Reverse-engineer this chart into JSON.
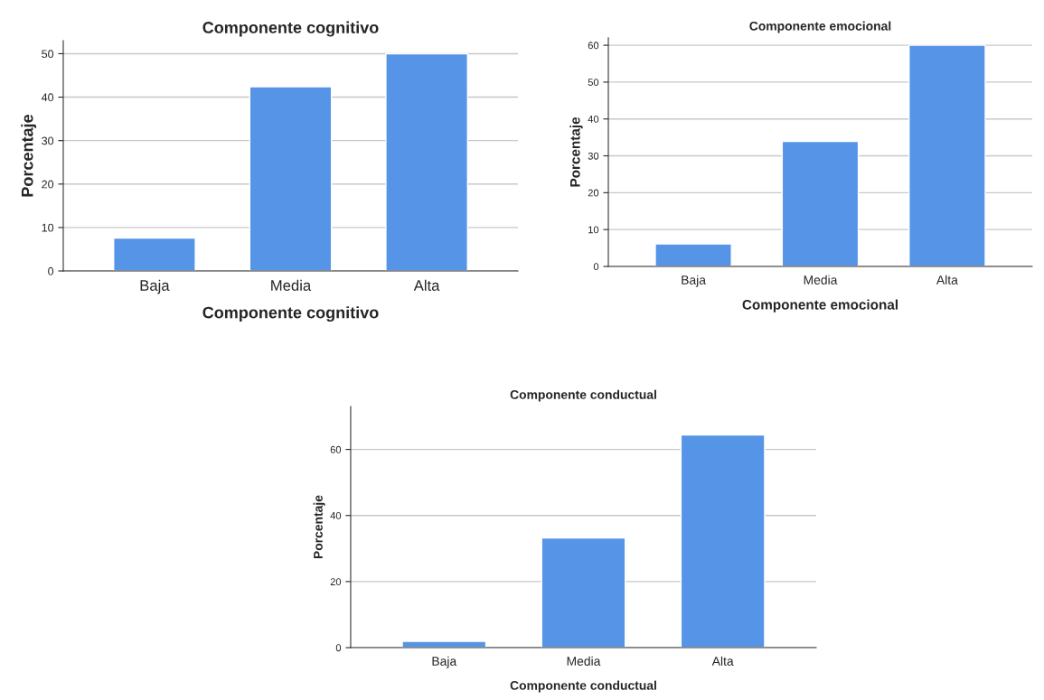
{
  "chart_data": [
    {
      "type": "bar",
      "title": "Componente cognitivo",
      "xlabel": "Componente cognitivo",
      "ylabel": "Porcentaje",
      "categories": [
        "Baja",
        "Media",
        "Alta"
      ],
      "values": [
        7.6,
        42.4,
        50.0
      ],
      "color": "#5594e6",
      "ylim": [
        0,
        53
      ],
      "yticks": [
        0,
        10,
        20,
        30,
        40,
        50
      ],
      "grid": "y",
      "legend": false
    },
    {
      "type": "bar",
      "title": "Componente emocional",
      "xlabel": "Componente emocional",
      "ylabel": "Porcentaje",
      "categories": [
        "Baja",
        "Media",
        "Alta"
      ],
      "values": [
        6.1,
        33.9,
        60.0
      ],
      "color": "#5594e6",
      "ylim": [
        0,
        62
      ],
      "yticks": [
        0,
        10,
        20,
        30,
        40,
        50,
        60
      ],
      "grid": "y",
      "legend": false
    },
    {
      "type": "bar",
      "title": "Componente conductual",
      "xlabel": "Componente conductual",
      "ylabel": "Porcentaje",
      "categories": [
        "Baja",
        "Media",
        "Alta"
      ],
      "values": [
        1.9,
        33.2,
        64.4
      ],
      "color": "#5594e6",
      "ylim": [
        0,
        73
      ],
      "yticks": [
        0,
        20,
        40,
        60
      ],
      "grid": "y",
      "legend": false
    }
  ]
}
